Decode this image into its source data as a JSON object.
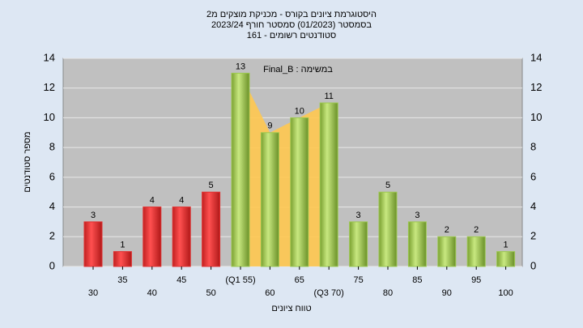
{
  "chart_data": {
    "type": "bar",
    "title": [
      "היסטוגרמת ציונים בקורס - מכניקת מוצקים מ2",
      "בסמסטר (01/2023) סמסטר חורף 2023/24",
      "סטודנטים רשומים - 161"
    ],
    "annotation": "במשימה : Final_B",
    "xlabel": "טווח ציונים",
    "ylabel": "מספר סטודנטים",
    "categories": [
      "30",
      "35",
      "40",
      "45",
      "50",
      "(Q1 55)",
      "60",
      "65",
      "(Q3 70)",
      "75",
      "80",
      "85",
      "90",
      "95",
      "100"
    ],
    "values": [
      3,
      1,
      4,
      4,
      5,
      13,
      9,
      10,
      11,
      3,
      5,
      3,
      2,
      2,
      1
    ],
    "colors": [
      "#e03030",
      "#e03030",
      "#e03030",
      "#e03030",
      "#e03030",
      "#9cc850",
      "#9cc850",
      "#9cc850",
      "#9cc850",
      "#9cc850",
      "#9cc850",
      "#9cc850",
      "#9cc850",
      "#9cc850",
      "#9cc850"
    ],
    "ylim": [
      0,
      14
    ],
    "yticks": [
      0,
      2,
      4,
      6,
      8,
      10,
      12,
      14
    ],
    "grid": true
  }
}
